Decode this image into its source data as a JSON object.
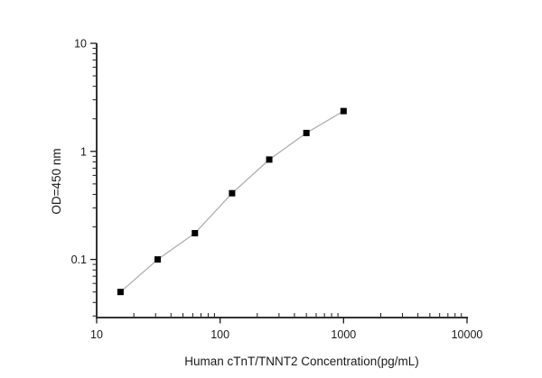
{
  "figure": {
    "description": "ELISA standard curve, log-log scatter plot with connected points",
    "background": "#ffffff"
  },
  "chart_data": {
    "type": "line",
    "x": [
      15.6,
      31.2,
      62.5,
      125,
      250,
      500,
      1000
    ],
    "values": [
      0.05,
      0.1,
      0.175,
      0.41,
      0.84,
      1.48,
      2.36
    ],
    "title": "",
    "xlabel": "Human cTnT/TNNT2 Concentration(pg/mL)",
    "ylabel": "OD=450 nm",
    "xscale": "log",
    "yscale": "log",
    "xlim": [
      10,
      10000
    ],
    "ylim": [
      0.029,
      10
    ],
    "x_major_ticks": [
      10,
      100,
      1000,
      10000
    ],
    "x_tick_labels": [
      "10",
      "100",
      "1000",
      "10000"
    ],
    "y_major_ticks": [
      0.1,
      1,
      10
    ],
    "y_tick_labels": [
      "0.1",
      "1",
      "10"
    ],
    "grid": false,
    "legend": "none",
    "marker": "filled-square",
    "colors": {
      "marker": "#000000",
      "line": "#a9a9a9",
      "axis": "#333333",
      "tick": "#1a1a1a",
      "text": "#1a1a1a",
      "background": "#ffffff"
    }
  }
}
